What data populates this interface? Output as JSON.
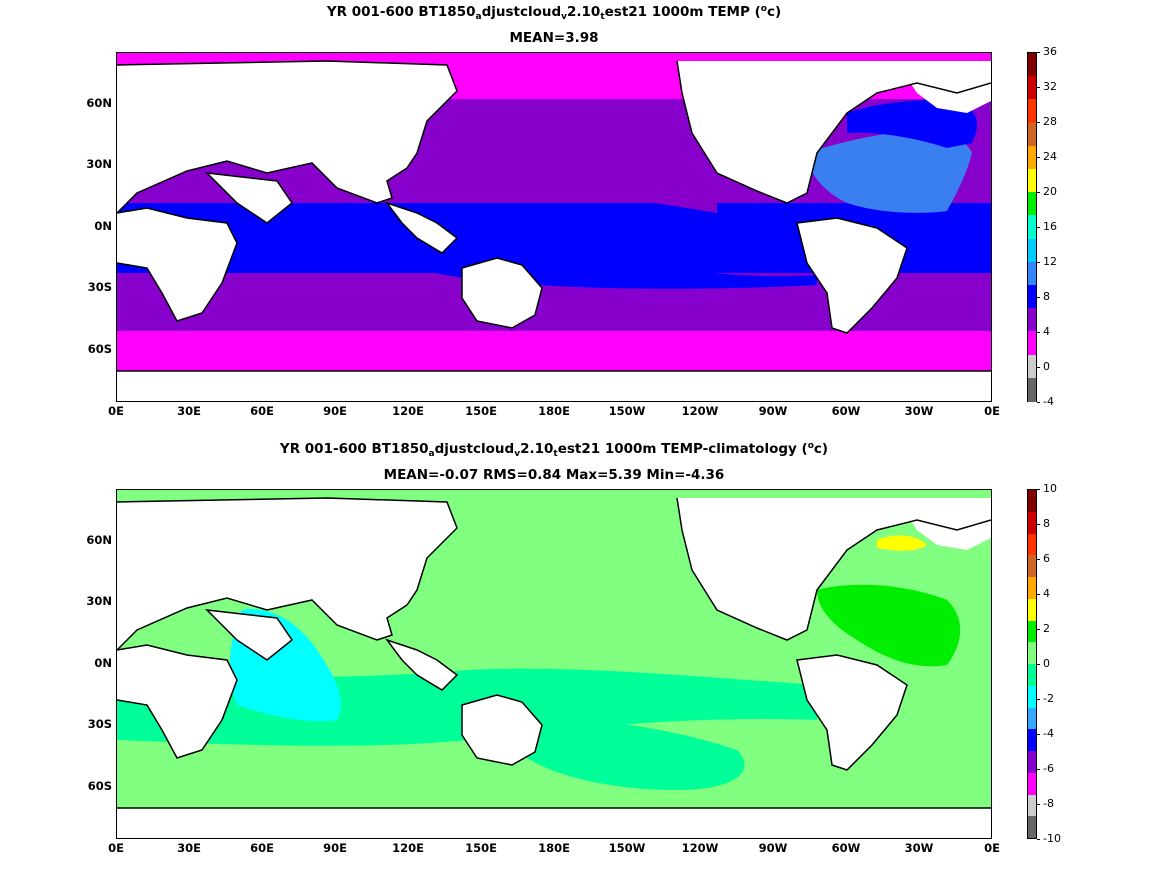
{
  "panels": [
    {
      "title_parts": [
        "YR 001-600 BT1850",
        "a",
        "djustcloud",
        "v",
        "2.10",
        "t",
        "est21 1000m TEMP (",
        "o",
        "c)"
      ],
      "subtitle": "MEAN=3.98",
      "colorbar": {
        "labels": [
          "36",
          "32",
          "28",
          "24",
          "20",
          "16",
          "12",
          "8",
          "4",
          "0",
          "-4"
        ],
        "colors": [
          "#800000",
          "#cc0000",
          "#ff3300",
          "#cc6622",
          "#ffaa00",
          "#ffff00",
          "#00ee00",
          "#00ffcc",
          "#00ccff",
          "#3388ff",
          "#0000ff",
          "#8800cc",
          "#ff00ff",
          "#cccccc",
          "#666666"
        ]
      },
      "map": {
        "ocean_bands": [
          {
            "name": "polar-north",
            "color": "#ff00ff"
          },
          {
            "name": "subpolar-north",
            "color": "#8800cc"
          },
          {
            "name": "tropics",
            "color": "#0000ff"
          },
          {
            "name": "subtropics-south",
            "color": "#8800cc"
          },
          {
            "name": "southern-ocean",
            "color": "#ff00ff"
          }
        ],
        "features": [
          {
            "name": "north-atlantic-warm",
            "color": "#3a7ff0"
          },
          {
            "name": "mediterranean-warm",
            "color": "#00ccff"
          }
        ]
      }
    },
    {
      "title_parts": [
        "YR 001-600 BT1850",
        "a",
        "djustcloud",
        "v",
        "2.10",
        "t",
        "est21 1000m TEMP-climatology (",
        "o",
        "c)"
      ],
      "subtitle": "MEAN=-0.07   RMS=0.84   Max=5.39   Min=-4.36",
      "colorbar": {
        "labels": [
          "10",
          "8",
          "6",
          "4",
          "2",
          "0",
          "-2",
          "-4",
          "-6",
          "-8",
          "-10"
        ],
        "colors": [
          "#800000",
          "#cc0000",
          "#ff3300",
          "#cc6622",
          "#ffaa00",
          "#ffff00",
          "#00ee00",
          "#80ff80",
          "#00ff99",
          "#00ffff",
          "#33aaff",
          "#0000ff",
          "#8800cc",
          "#ff00ff",
          "#cccccc",
          "#666666"
        ]
      },
      "map": {
        "ocean_bands": [
          {
            "name": "background-anomaly",
            "color": "#80ff80"
          }
        ],
        "features": [
          {
            "name": "indian-ocean-cool",
            "color": "#00ffff"
          },
          {
            "name": "pacific-slight-cool",
            "color": "#00ff99"
          },
          {
            "name": "north-atlantic-warm",
            "color": "#00ee00"
          },
          {
            "name": "labrador-warm",
            "color": "#ffff00"
          }
        ]
      }
    }
  ],
  "axes": {
    "ylabels": [
      "60N",
      "30N",
      "0N",
      "30S",
      "60S"
    ],
    "xlabels": [
      "0E",
      "30E",
      "60E",
      "90E",
      "120E",
      "150E",
      "180E",
      "150W",
      "120W",
      "90W",
      "60W",
      "30W",
      "0E"
    ]
  },
  "colors": {
    "land": "#ffffff",
    "coastline": "#000000"
  }
}
